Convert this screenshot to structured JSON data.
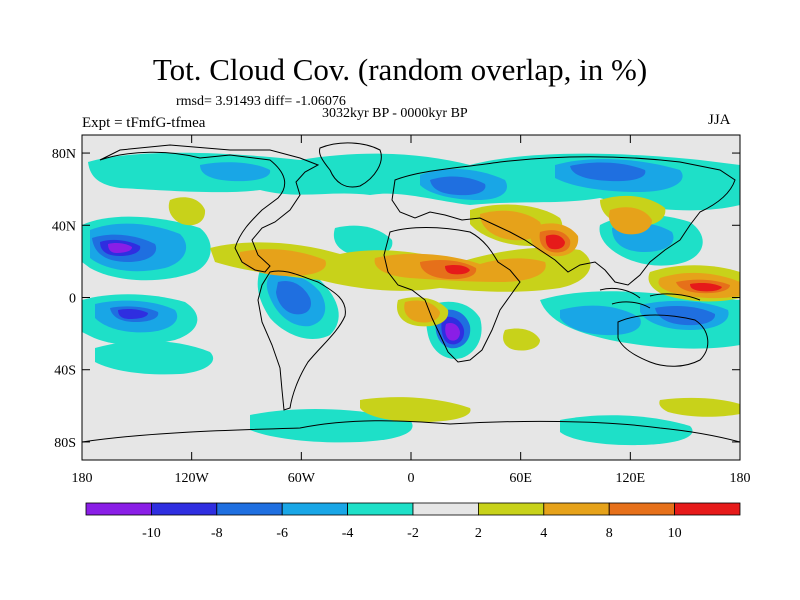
{
  "header": {
    "title": "Tot. Cloud Cov. (random overlap, in %)",
    "stats": "rmsd= 3.91493 diff= -1.06076",
    "period": "3032kyr BP - 0000kyr BP",
    "experiment": "Expt = tFmfG-tfmea",
    "season": "JJA"
  },
  "map": {
    "projection": "cylindrical-equidistant",
    "lon_range": [
      -180,
      180
    ],
    "lat_range": [
      -90,
      90
    ],
    "background_color": "#e6e6e6",
    "coastline_color": "#000000",
    "lon_ticks": [
      {
        "value": -180,
        "label": "180"
      },
      {
        "value": -120,
        "label": "120W"
      },
      {
        "value": -60,
        "label": "60W"
      },
      {
        "value": 0,
        "label": "0"
      },
      {
        "value": 60,
        "label": "60E"
      },
      {
        "value": 120,
        "label": "120E"
      },
      {
        "value": 180,
        "label": "180"
      }
    ],
    "lat_ticks": [
      {
        "value": 80,
        "label": "80N"
      },
      {
        "value": 40,
        "label": "40N"
      },
      {
        "value": 0,
        "label": "0"
      },
      {
        "value": -40,
        "label": "40S"
      },
      {
        "value": -80,
        "label": "80S"
      }
    ]
  },
  "colorbar": {
    "colors": [
      "#8a1ee6",
      "#2f2ee0",
      "#1f6fe0",
      "#19a6e6",
      "#1ee0c8",
      "#e6e6e6",
      "#c8d21a",
      "#e6a21a",
      "#e6701a",
      "#e61a1a"
    ],
    "labels": [
      "-10",
      "-8",
      "-6",
      "-4",
      "-2",
      "2",
      "4",
      "8",
      "10"
    ]
  }
}
